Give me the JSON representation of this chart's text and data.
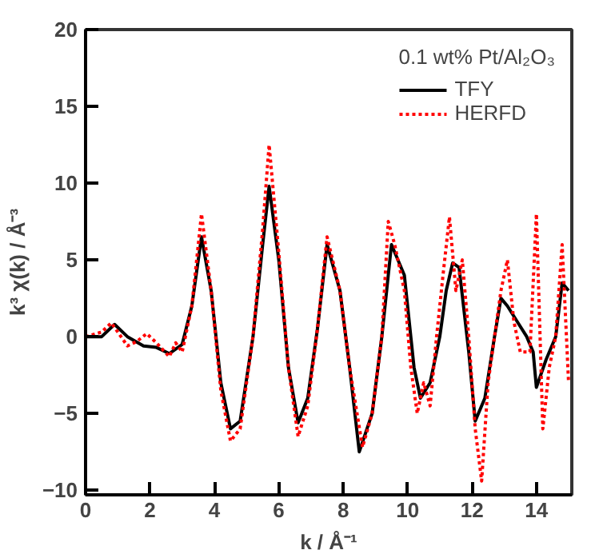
{
  "chart_data": {
    "type": "line",
    "xlabel": "k / Å⁻¹",
    "ylabel": "k³ χ(k) / Å⁻³",
    "legend_title": "0.1 wt% Pt/Al₂O₃",
    "xlim": [
      0,
      15.1
    ],
    "ylim": [
      -10.3,
      20
    ],
    "xticks": [
      0,
      2,
      4,
      6,
      8,
      10,
      12,
      14
    ],
    "yticks": [
      -10,
      -5,
      0,
      5,
      10,
      15,
      20
    ],
    "grid": false,
    "legend": "top right",
    "marker": "none",
    "series": [
      {
        "name": "TFY",
        "color": "#000000",
        "line_style": "solid",
        "x": [
          0,
          0.5,
          0.9,
          1.3,
          1.8,
          2.2,
          2.6,
          3.0,
          3.3,
          3.6,
          3.9,
          4.2,
          4.5,
          4.8,
          5.2,
          5.5,
          5.7,
          6.0,
          6.3,
          6.6,
          6.9,
          7.2,
          7.5,
          7.9,
          8.2,
          8.5,
          8.9,
          9.2,
          9.5,
          9.9,
          10.2,
          10.4,
          10.7,
          11.0,
          11.2,
          11.4,
          11.6,
          11.9,
          12.1,
          12.4,
          12.7,
          12.9,
          13.1,
          13.4,
          13.7,
          13.9,
          14.0,
          14.3,
          14.6,
          14.8,
          15.0
        ],
        "values": [
          0,
          0,
          0.8,
          0,
          -0.6,
          -0.7,
          -1.1,
          -0.5,
          2,
          6.5,
          3,
          -3,
          -6,
          -5.5,
          0,
          6,
          9.8,
          5,
          -2,
          -5.6,
          -4,
          0.5,
          6,
          3,
          -2,
          -7.5,
          -5,
          0,
          6,
          4,
          -2,
          -4,
          -3,
          0,
          3,
          4.8,
          4.5,
          -1,
          -5.5,
          -4,
          0,
          2.5,
          2,
          1,
          0,
          -1,
          -3.3,
          -1.5,
          0,
          3.5,
          3
        ]
      },
      {
        "name": "HERFD",
        "color": "#ff0000",
        "line_style": "dotted",
        "x": [
          0,
          0.5,
          0.8,
          1.0,
          1.3,
          1.6,
          1.9,
          2.2,
          2.6,
          2.8,
          3.0,
          3.3,
          3.6,
          3.9,
          4.2,
          4.5,
          4.8,
          5.2,
          5.5,
          5.7,
          6.0,
          6.3,
          6.6,
          6.9,
          7.2,
          7.5,
          7.9,
          8.2,
          8.6,
          8.9,
          9.2,
          9.4,
          9.6,
          9.9,
          10.1,
          10.3,
          10.5,
          10.7,
          10.9,
          11.1,
          11.3,
          11.5,
          11.7,
          11.9,
          12.1,
          12.3,
          12.5,
          12.7,
          12.9,
          13.1,
          13.3,
          13.5,
          13.8,
          14.0,
          14.2,
          14.4,
          14.6,
          14.8,
          15.0
        ],
        "values": [
          0,
          0.3,
          0.9,
          0.3,
          -0.6,
          -0.3,
          0.2,
          -0.4,
          -1.3,
          -0.4,
          -1,
          2,
          8,
          3,
          -3.5,
          -6.8,
          -6,
          0,
          7,
          12.5,
          5.5,
          -2,
          -6.5,
          -4.5,
          0.5,
          6.5,
          3,
          -2,
          -7.2,
          -5,
          0,
          7.5,
          6,
          3,
          -2,
          -5,
          -3,
          -4.5,
          0,
          4,
          7.8,
          3,
          5,
          0,
          -6,
          -9.4,
          -3,
          0,
          3,
          5,
          1,
          -1,
          -1,
          8,
          -6,
          -2,
          0,
          6,
          -3
        ]
      }
    ]
  }
}
